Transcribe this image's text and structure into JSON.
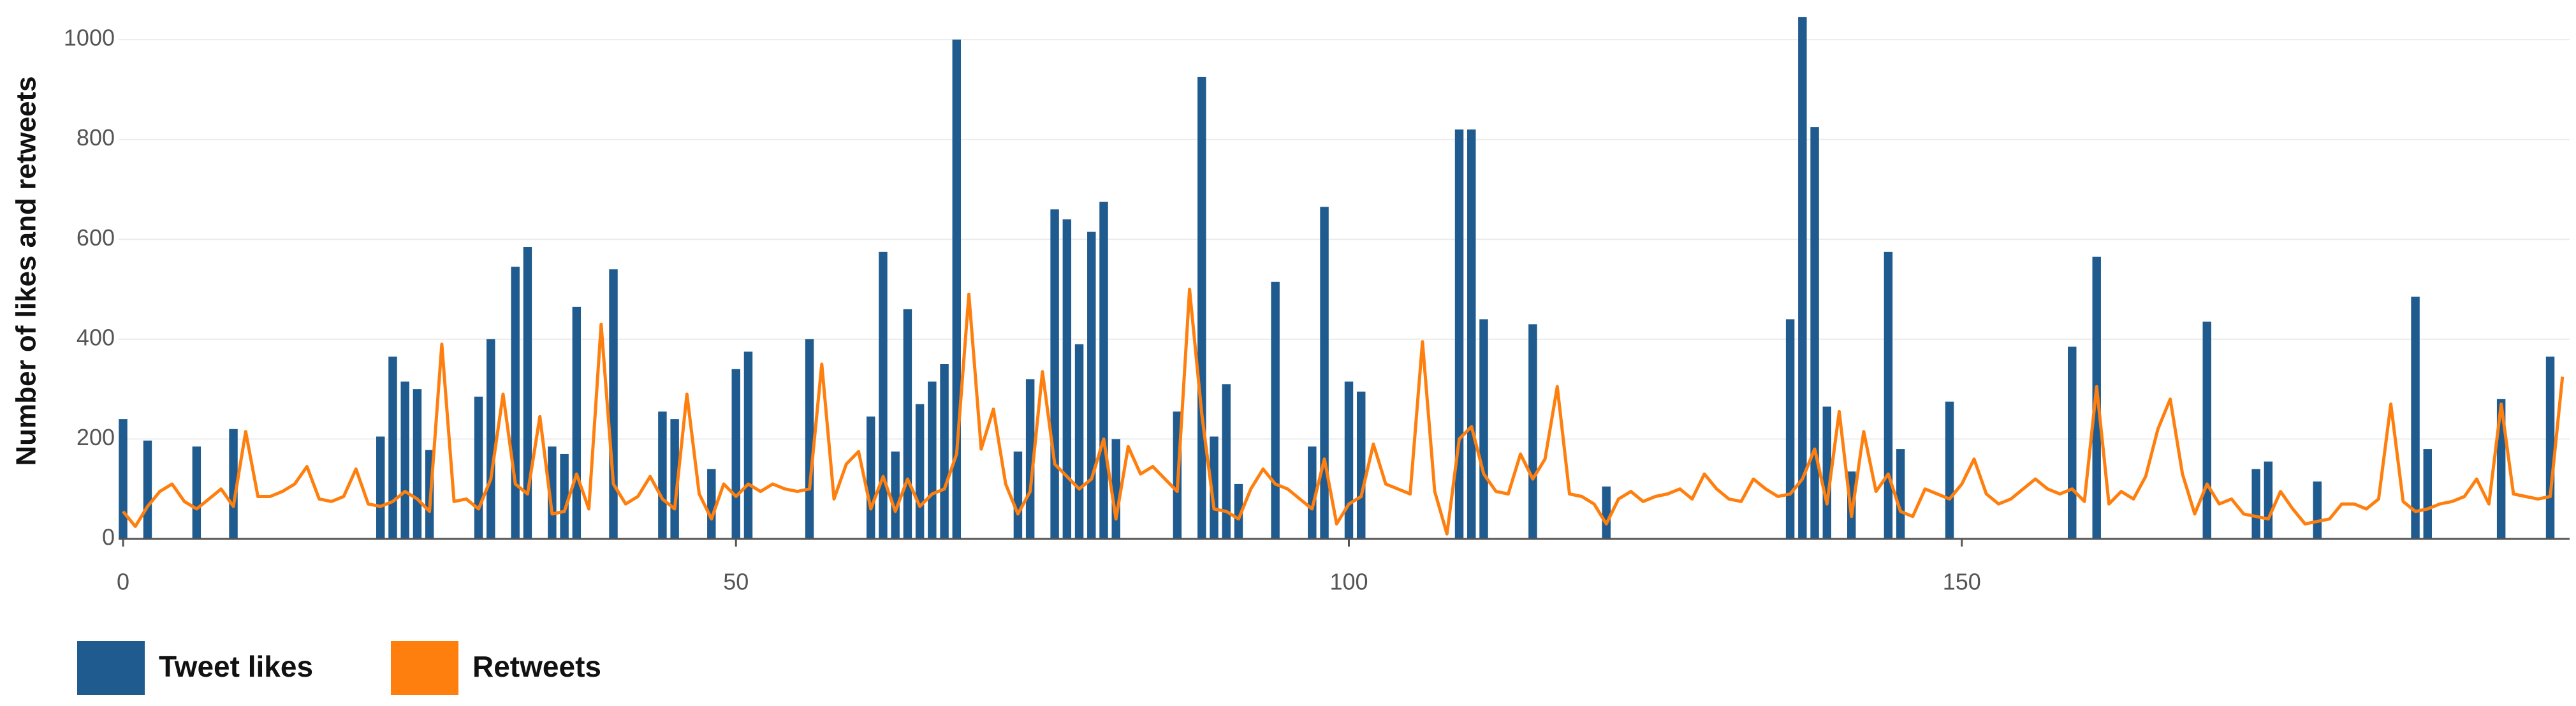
{
  "chart_data": {
    "type": "combo",
    "y_label": "Number of likes and retweets",
    "xlim": [
      0,
      200
    ],
    "xticks": [
      0,
      50,
      100,
      150
    ],
    "ylim": [
      0,
      1050
    ],
    "yticks": [
      0,
      200,
      400,
      600,
      800,
      1000
    ],
    "grid": true,
    "legend": "bottom-left",
    "x": [
      0,
      1,
      2,
      3,
      4,
      5,
      6,
      7,
      8,
      9,
      10,
      11,
      12,
      13,
      14,
      15,
      16,
      17,
      18,
      19,
      20,
      21,
      22,
      23,
      24,
      25,
      26,
      27,
      28,
      29,
      30,
      31,
      32,
      33,
      34,
      35,
      36,
      37,
      38,
      39,
      40,
      41,
      42,
      43,
      44,
      45,
      46,
      47,
      48,
      49,
      50,
      51,
      52,
      53,
      54,
      55,
      56,
      57,
      58,
      59,
      60,
      61,
      62,
      63,
      64,
      65,
      66,
      67,
      68,
      69,
      70,
      71,
      72,
      73,
      74,
      75,
      76,
      77,
      78,
      79,
      80,
      81,
      82,
      83,
      84,
      85,
      86,
      87,
      88,
      89,
      90,
      91,
      92,
      93,
      94,
      95,
      96,
      97,
      98,
      99,
      100,
      101,
      102,
      103,
      104,
      105,
      106,
      107,
      108,
      109,
      110,
      111,
      112,
      113,
      114,
      115,
      116,
      117,
      118,
      119,
      120,
      121,
      122,
      123,
      124,
      125,
      126,
      127,
      128,
      129,
      130,
      131,
      132,
      133,
      134,
      135,
      136,
      137,
      138,
      139,
      140,
      141,
      142,
      143,
      144,
      145,
      146,
      147,
      148,
      149,
      150,
      151,
      152,
      153,
      154,
      155,
      156,
      157,
      158,
      159,
      160,
      161,
      162,
      163,
      164,
      165,
      166,
      167,
      168,
      169,
      170,
      171,
      172,
      173,
      174,
      175,
      176,
      177,
      178,
      179,
      180,
      181,
      182,
      183,
      184,
      185,
      186,
      187,
      188,
      189,
      190,
      191,
      192,
      193,
      194,
      195,
      196,
      197,
      198,
      199
    ],
    "series": [
      {
        "name": "Tweet likes",
        "type": "bar",
        "color": "#1f5b8e",
        "values": [
          240,
          0,
          197,
          0,
          0,
          0,
          185,
          0,
          0,
          220,
          0,
          0,
          0,
          0,
          0,
          0,
          0,
          0,
          0,
          0,
          0,
          205,
          365,
          315,
          300,
          178,
          0,
          0,
          0,
          285,
          400,
          0,
          545,
          585,
          0,
          185,
          170,
          465,
          0,
          0,
          540,
          0,
          0,
          0,
          255,
          240,
          0,
          0,
          140,
          0,
          340,
          375,
          0,
          0,
          0,
          0,
          400,
          0,
          0,
          0,
          0,
          245,
          575,
          175,
          460,
          270,
          315,
          350,
          1000,
          0,
          0,
          0,
          0,
          175,
          320,
          0,
          660,
          640,
          390,
          615,
          675,
          200,
          0,
          0,
          0,
          0,
          255,
          0,
          925,
          205,
          310,
          110,
          0,
          0,
          515,
          0,
          0,
          185,
          665,
          0,
          315,
          295,
          0,
          0,
          0,
          0,
          0,
          0,
          0,
          820,
          820,
          440,
          0,
          0,
          0,
          430,
          0,
          0,
          0,
          0,
          0,
          105,
          0,
          0,
          0,
          0,
          0,
          0,
          0,
          0,
          0,
          0,
          0,
          0,
          0,
          0,
          440,
          1045,
          825,
          265,
          0,
          135,
          0,
          0,
          575,
          180,
          0,
          0,
          0,
          275,
          0,
          0,
          0,
          0,
          0,
          0,
          0,
          0,
          0,
          385,
          0,
          565,
          0,
          0,
          0,
          0,
          0,
          0,
          0,
          0,
          435,
          0,
          0,
          0,
          140,
          155,
          0,
          0,
          0,
          115,
          0,
          0,
          0,
          0,
          0,
          0,
          0,
          485,
          180,
          0,
          0,
          0,
          0,
          0,
          280,
          0,
          0,
          0,
          365,
          0
        ]
      },
      {
        "name": "Retweets",
        "type": "line",
        "color": "#ff7f0e",
        "values": [
          55,
          25,
          65,
          95,
          110,
          75,
          60,
          80,
          100,
          65,
          215,
          85,
          85,
          95,
          110,
          145,
          80,
          75,
          85,
          140,
          70,
          65,
          75,
          95,
          80,
          55,
          390,
          75,
          80,
          60,
          120,
          290,
          110,
          90,
          245,
          50,
          55,
          130,
          60,
          430,
          110,
          70,
          85,
          125,
          80,
          60,
          290,
          90,
          40,
          110,
          85,
          110,
          95,
          110,
          100,
          95,
          100,
          350,
          80,
          150,
          175,
          60,
          125,
          55,
          120,
          65,
          90,
          100,
          170,
          490,
          180,
          260,
          110,
          50,
          95,
          335,
          150,
          125,
          100,
          120,
          200,
          40,
          185,
          130,
          145,
          120,
          95,
          500,
          250,
          60,
          55,
          40,
          100,
          140,
          110,
          100,
          80,
          60,
          160,
          30,
          70,
          85,
          190,
          110,
          100,
          90,
          395,
          95,
          10,
          200,
          225,
          130,
          95,
          90,
          170,
          120,
          160,
          305,
          90,
          85,
          70,
          30,
          80,
          95,
          75,
          85,
          90,
          100,
          80,
          130,
          100,
          80,
          75,
          120,
          100,
          85,
          90,
          120,
          180,
          70,
          255,
          45,
          215,
          95,
          130,
          55,
          45,
          100,
          90,
          80,
          110,
          160,
          90,
          70,
          80,
          100,
          120,
          100,
          90,
          100,
          75,
          305,
          70,
          95,
          80,
          125,
          220,
          280,
          130,
          50,
          110,
          70,
          80,
          50,
          45,
          40,
          95,
          60,
          30,
          35,
          40,
          70,
          70,
          60,
          80,
          270,
          75,
          55,
          60,
          70,
          75,
          85,
          120,
          70,
          270,
          90,
          85,
          80,
          85,
          325
        ]
      }
    ]
  }
}
